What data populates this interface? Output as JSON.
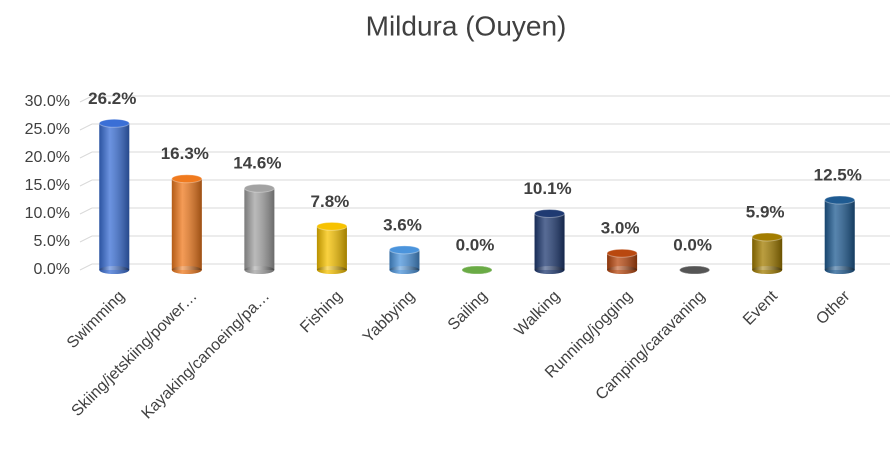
{
  "chart_data": {
    "type": "bar",
    "title": "Mildura (Ouyen)",
    "categories": [
      "Swimming",
      "Skiing/jetskiing/power…",
      "Kayaking/canoeing/pa…",
      "Fishing",
      "Yabbying",
      "Sailing",
      "Walking",
      "Running/jogging",
      "Camping/caravaning",
      "Event",
      "Other"
    ],
    "values": [
      26.2,
      16.3,
      14.6,
      7.8,
      3.6,
      0.0,
      10.1,
      3.0,
      0.0,
      5.9,
      12.5
    ],
    "value_labels": [
      "26.2%",
      "16.3%",
      "14.6%",
      "7.8%",
      "3.6%",
      "0.0%",
      "10.1%",
      "3.0%",
      "0.0%",
      "5.9%",
      "12.5%"
    ],
    "colors": [
      "#3a6fd6",
      "#f07a1e",
      "#a3a3a3",
      "#f7c200",
      "#4b94dc",
      "#6aab45",
      "#1f3a72",
      "#b9480f",
      "#555555",
      "#a37d00",
      "#1f5b92"
    ],
    "ylim": [
      0,
      30
    ],
    "yticks": [
      {
        "value": 0,
        "label": "0.0%"
      },
      {
        "value": 5,
        "label": "5.0%"
      },
      {
        "value": 10,
        "label": "10.0%"
      },
      {
        "value": 15,
        "label": "15.0%"
      },
      {
        "value": 20,
        "label": "20.0%"
      },
      {
        "value": 25,
        "label": "25.0%"
      },
      {
        "value": 30,
        "label": "30.0%"
      }
    ],
    "grid": true
  }
}
